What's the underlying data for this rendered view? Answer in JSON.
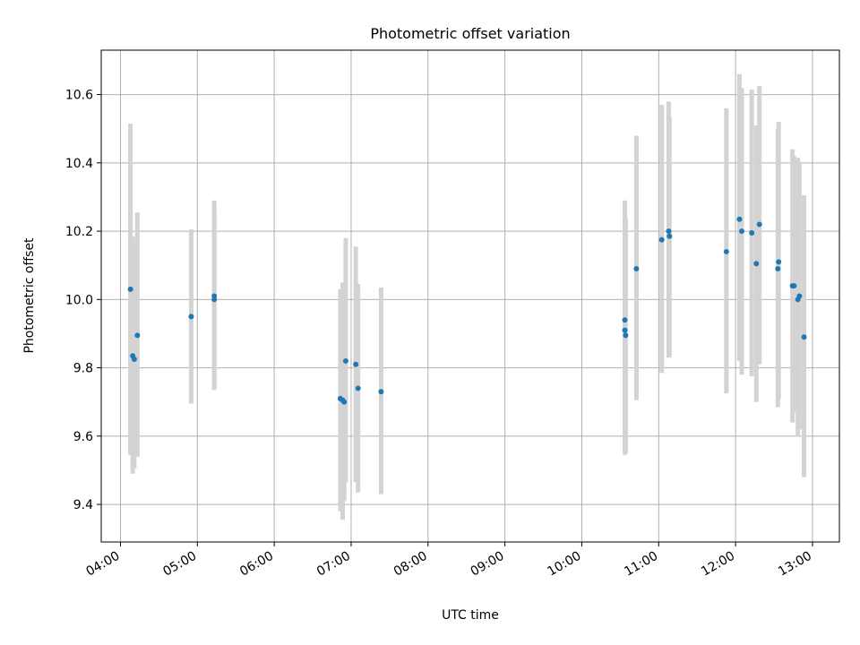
{
  "chart_data": {
    "type": "scatter",
    "title": "Photometric offset variation",
    "xlabel": "UTC time",
    "ylabel": "Photometric offset",
    "x_unit": "hours (UTC)",
    "xlim": [
      3.75,
      13.35
    ],
    "ylim": [
      9.29,
      10.73
    ],
    "grid": true,
    "x_ticks": [
      {
        "value": 4,
        "label": "04:00"
      },
      {
        "value": 5,
        "label": "05:00"
      },
      {
        "value": 6,
        "label": "06:00"
      },
      {
        "value": 7,
        "label": "07:00"
      },
      {
        "value": 8,
        "label": "08:00"
      },
      {
        "value": 9,
        "label": "09:00"
      },
      {
        "value": 10,
        "label": "10:00"
      },
      {
        "value": 11,
        "label": "11:00"
      },
      {
        "value": 12,
        "label": "12:00"
      },
      {
        "value": 13,
        "label": "13:00"
      }
    ],
    "y_ticks": [
      {
        "value": 9.4,
        "label": "9.4"
      },
      {
        "value": 9.6,
        "label": "9.6"
      },
      {
        "value": 9.8,
        "label": "9.8"
      },
      {
        "value": 10.0,
        "label": "10.0"
      },
      {
        "value": 10.2,
        "label": "10.2"
      },
      {
        "value": 10.4,
        "label": "10.4"
      },
      {
        "value": 10.6,
        "label": "10.6"
      }
    ],
    "colors": {
      "point": "#1f77b4",
      "errorbar": "#d3d3d3",
      "grid": "#b0b0b0"
    },
    "points": [
      {
        "x": 4.13,
        "y": 10.03,
        "ylow": 9.545,
        "yhigh": 10.515
      },
      {
        "x": 4.16,
        "y": 9.835,
        "ylow": 9.49,
        "yhigh": 10.185
      },
      {
        "x": 4.18,
        "y": 9.825,
        "ylow": 9.505,
        "yhigh": 10.165
      },
      {
        "x": 4.22,
        "y": 9.895,
        "ylow": 9.54,
        "yhigh": 10.255
      },
      {
        "x": 4.92,
        "y": 9.95,
        "ylow": 9.695,
        "yhigh": 10.205
      },
      {
        "x": 5.22,
        "y": 10.01,
        "ylow": 9.735,
        "yhigh": 10.29
      },
      {
        "x": 5.22,
        "y": 10.0,
        "ylow": 9.74,
        "yhigh": 10.26
      },
      {
        "x": 6.86,
        "y": 9.71,
        "ylow": 9.38,
        "yhigh": 10.03
      },
      {
        "x": 6.89,
        "y": 9.705,
        "ylow": 9.355,
        "yhigh": 10.05
      },
      {
        "x": 6.91,
        "y": 9.7,
        "ylow": 9.41,
        "yhigh": 9.99
      },
      {
        "x": 6.93,
        "y": 9.82,
        "ylow": 9.465,
        "yhigh": 10.18
      },
      {
        "x": 7.06,
        "y": 9.81,
        "ylow": 9.465,
        "yhigh": 10.155
      },
      {
        "x": 7.09,
        "y": 9.74,
        "ylow": 9.435,
        "yhigh": 10.045
      },
      {
        "x": 7.39,
        "y": 9.73,
        "ylow": 9.43,
        "yhigh": 10.035
      },
      {
        "x": 10.56,
        "y": 9.94,
        "ylow": 9.545,
        "yhigh": 10.29
      },
      {
        "x": 10.56,
        "y": 9.91,
        "ylow": 9.55,
        "yhigh": 10.25
      },
      {
        "x": 10.57,
        "y": 9.895,
        "ylow": 9.55,
        "yhigh": 10.24
      },
      {
        "x": 10.71,
        "y": 10.09,
        "ylow": 9.705,
        "yhigh": 10.48
      },
      {
        "x": 11.04,
        "y": 10.175,
        "ylow": 9.785,
        "yhigh": 10.57
      },
      {
        "x": 11.13,
        "y": 10.2,
        "ylow": 9.83,
        "yhigh": 10.58
      },
      {
        "x": 11.14,
        "y": 10.185,
        "ylow": 9.83,
        "yhigh": 10.535
      },
      {
        "x": 11.88,
        "y": 10.14,
        "ylow": 9.725,
        "yhigh": 10.56
      },
      {
        "x": 12.05,
        "y": 10.235,
        "ylow": 9.82,
        "yhigh": 10.66
      },
      {
        "x": 12.08,
        "y": 10.2,
        "ylow": 9.78,
        "yhigh": 10.62
      },
      {
        "x": 12.21,
        "y": 10.195,
        "ylow": 9.775,
        "yhigh": 10.615
      },
      {
        "x": 12.27,
        "y": 10.105,
        "ylow": 9.7,
        "yhigh": 10.51
      },
      {
        "x": 12.31,
        "y": 10.22,
        "ylow": 9.81,
        "yhigh": 10.625
      },
      {
        "x": 12.55,
        "y": 10.09,
        "ylow": 9.685,
        "yhigh": 10.5
      },
      {
        "x": 12.56,
        "y": 10.11,
        "ylow": 9.71,
        "yhigh": 10.52
      },
      {
        "x": 12.74,
        "y": 10.04,
        "ylow": 9.64,
        "yhigh": 10.44
      },
      {
        "x": 12.76,
        "y": 10.04,
        "ylow": 9.67,
        "yhigh": 10.42
      },
      {
        "x": 12.81,
        "y": 10.0,
        "ylow": 9.6,
        "yhigh": 10.415
      },
      {
        "x": 12.83,
        "y": 10.01,
        "ylow": 9.62,
        "yhigh": 10.4
      },
      {
        "x": 12.89,
        "y": 9.89,
        "ylow": 9.48,
        "yhigh": 10.305
      }
    ]
  }
}
